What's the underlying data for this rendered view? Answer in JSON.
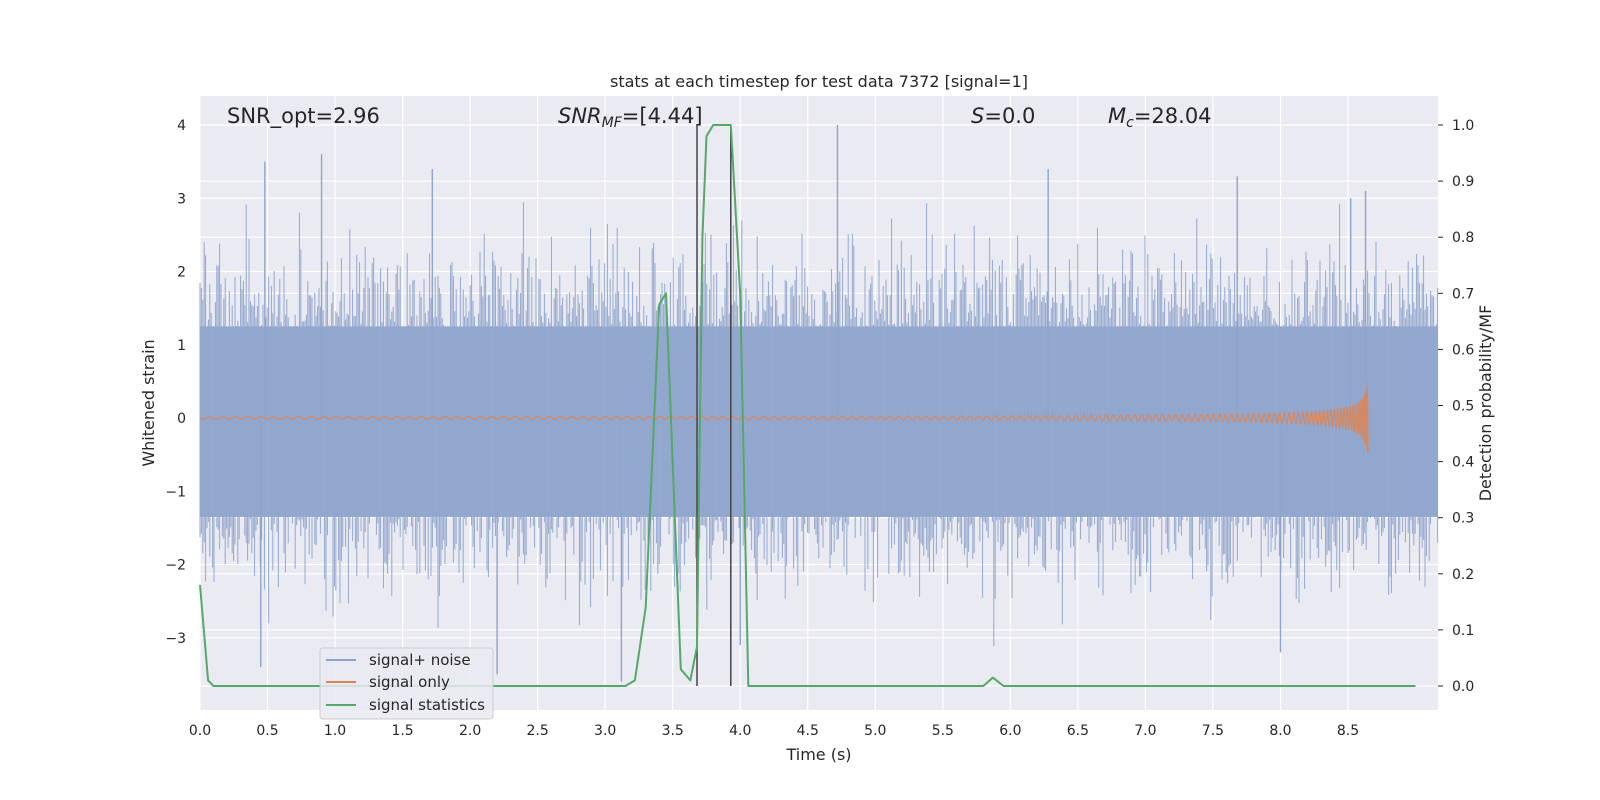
{
  "chart_data": {
    "type": "line",
    "title": "stats at each timestep for test data 7372 [signal=1]",
    "xlabel": "Time (s)",
    "ylabel": "Whitened strain",
    "ylabel_right": "Detection probability/MF",
    "xlim": [
      0.0,
      9.0
    ],
    "ylim": [
      -3.9,
      4.35
    ],
    "ylim_right": [
      -0.05,
      1.03
    ],
    "x_ticks": [
      "0.0",
      "0.5",
      "1.0",
      "1.5",
      "2.0",
      "2.5",
      "3.0",
      "3.5",
      "4.0",
      "4.5",
      "5.0",
      "5.5",
      "6.0",
      "6.5",
      "7.0",
      "7.5",
      "8.0",
      "8.5"
    ],
    "y_ticks": [
      "4",
      "3",
      "2",
      "1",
      "0",
      "−1",
      "−2",
      "−3"
    ],
    "y_ticks_right": [
      "1.0",
      "0.9",
      "0.8",
      "0.7",
      "0.6",
      "0.5",
      "0.4",
      "0.3",
      "0.2",
      "0.1",
      "0.0"
    ],
    "grid": true,
    "legend_position": "lower-left",
    "annotations": {
      "snr_opt": "SNR_opt=2.96",
      "snr_mf_main": "SNR",
      "snr_mf_sub": "MF",
      "snr_mf_value": "=[4.44]",
      "s_main": "S",
      "s_value": "=0.0",
      "mc_main": "M",
      "mc_sub": "c",
      "mc_value": "=28.04"
    },
    "vertical_lines_x": [
      3.68,
      3.93
    ],
    "series": [
      {
        "name": "signal+ noise",
        "color": "#8fa4cc",
        "description_values": {
          "typical_range": [
            -2.2,
            2.5
          ],
          "peak_max": 4.0,
          "peak_min": -3.6
        }
      },
      {
        "name": "signal only",
        "color": "#dd8452",
        "chirp_end_x": 8.65,
        "chirp_peak_amplitude": 0.75
      },
      {
        "name": "signal statistics",
        "color": "#55a868",
        "axis": "right",
        "x": [
          0.0,
          0.06,
          0.1,
          0.15,
          0.5,
          1.0,
          2.0,
          3.0,
          3.15,
          3.22,
          3.3,
          3.4,
          3.45,
          3.56,
          3.63,
          3.68,
          3.72,
          3.75,
          3.8,
          3.93,
          4.0,
          4.06,
          4.5,
          5.0,
          5.5,
          5.8,
          5.87,
          5.95,
          6.0,
          6.5,
          7.0,
          8.0,
          9.0
        ],
        "y": [
          0.18,
          0.01,
          0.0,
          0.0,
          0.0,
          0.0,
          0.0,
          0.0,
          0.0,
          0.01,
          0.14,
          0.68,
          0.7,
          0.03,
          0.01,
          0.07,
          0.8,
          0.98,
          1.0,
          1.0,
          0.7,
          0.0,
          0.0,
          0.0,
          0.0,
          0.0,
          0.015,
          0.0,
          0.0,
          0.0,
          0.0,
          0.0,
          0.0
        ]
      }
    ]
  }
}
